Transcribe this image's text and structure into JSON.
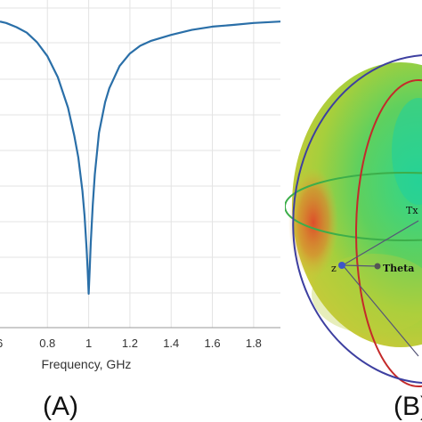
{
  "chart_data": [
    {
      "type": "line",
      "panel_label": "(A)",
      "xlabel": "Frequency, GHz",
      "ylabel": "",
      "xlim": [
        0.57,
        1.93
      ],
      "ylim": [
        0,
        1
      ],
      "grid": true,
      "x_ticks": [
        "0.8",
        "1",
        "1.2",
        "1.4",
        "1.6",
        "1.8"
      ],
      "x_tick_values": [
        0.8,
        1.0,
        1.2,
        1.4,
        1.6,
        1.8
      ],
      "series": [
        {
          "color": "#2a6fa8",
          "x": [
            0.57,
            0.6,
            0.65,
            0.7,
            0.75,
            0.8,
            0.85,
            0.9,
            0.93,
            0.95,
            0.97,
            0.98,
            0.99,
            0.995,
            1.0,
            1.005,
            1.01,
            1.02,
            1.03,
            1.05,
            1.08,
            1.1,
            1.15,
            1.2,
            1.25,
            1.3,
            1.4,
            1.5,
            1.6,
            1.7,
            1.8,
            1.93
          ],
          "y": [
            0.98,
            0.975,
            0.96,
            0.94,
            0.905,
            0.855,
            0.78,
            0.67,
            0.57,
            0.49,
            0.37,
            0.28,
            0.16,
            0.09,
            0.0,
            0.09,
            0.18,
            0.32,
            0.43,
            0.58,
            0.69,
            0.74,
            0.82,
            0.865,
            0.893,
            0.91,
            0.932,
            0.95,
            0.962,
            0.968,
            0.975,
            0.98
          ]
        }
      ]
    },
    {
      "type": "other",
      "panel_label": "(B)",
      "annotations": [
        "Tx",
        "z",
        "Theta"
      ]
    }
  ]
}
